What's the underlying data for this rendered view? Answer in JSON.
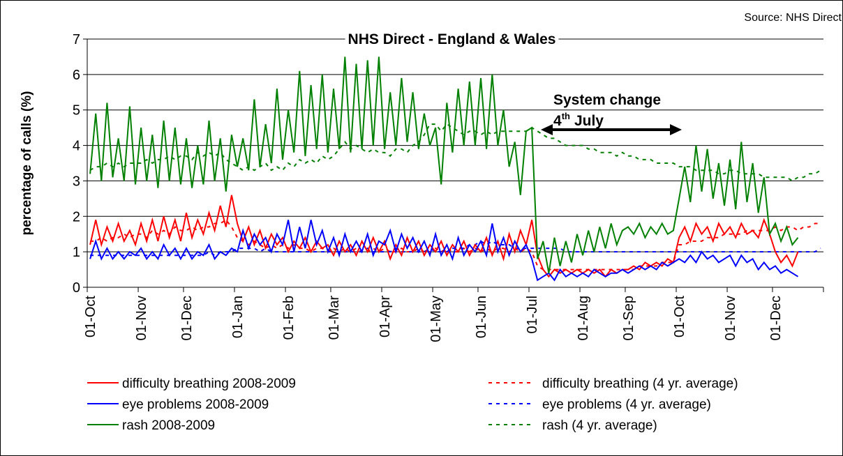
{
  "chart_data": {
    "type": "line",
    "title": "NHS Direct - England & Wales",
    "source": "Source: NHS Direct",
    "y_label": "percentage of calls (%)",
    "annotation": {
      "text": "System change",
      "day": "4",
      "day_suffix": "th",
      "month": "July"
    },
    "ylim": [
      0,
      7
    ],
    "yticks": [
      0,
      1,
      2,
      3,
      4,
      5,
      6,
      7
    ],
    "grid": true,
    "categories": [
      "01-Oct",
      null,
      null,
      null,
      null,
      null,
      null,
      null,
      null,
      "01-Nov",
      null,
      null,
      null,
      null,
      null,
      null,
      null,
      "01-Dec",
      null,
      null,
      null,
      null,
      null,
      null,
      null,
      null,
      "01-Jan",
      null,
      null,
      null,
      null,
      null,
      null,
      null,
      null,
      "01-Feb",
      null,
      null,
      null,
      null,
      null,
      null,
      null,
      "01-Mar",
      null,
      null,
      null,
      null,
      null,
      null,
      null,
      null,
      "01-Apr",
      null,
      null,
      null,
      null,
      null,
      null,
      null,
      null,
      "01-May",
      null,
      null,
      null,
      null,
      null,
      null,
      null,
      "01-Jun",
      null,
      null,
      null,
      null,
      null,
      null,
      null,
      null,
      "01-Jul",
      null,
      null,
      null,
      null,
      null,
      null,
      null,
      null,
      "01-Aug",
      null,
      null,
      null,
      null,
      null,
      null,
      null,
      "01-Sep",
      null,
      null,
      null,
      null,
      null,
      null,
      null,
      null,
      "01-Oct",
      null,
      null,
      null,
      null,
      null,
      null,
      null,
      null,
      "01-Nov",
      null,
      null,
      null,
      null,
      null,
      null,
      null,
      "01-Dec",
      null,
      null,
      null,
      null,
      null,
      null,
      null,
      null
    ],
    "series": [
      {
        "name": "difficulty breathing 2008-2009",
        "color": "#ff0000",
        "dashed": false,
        "values": [
          1.2,
          1.9,
          1.2,
          1.7,
          1.3,
          1.8,
          1.3,
          1.6,
          1.2,
          1.8,
          1.3,
          1.9,
          1.3,
          2.0,
          1.4,
          1.9,
          1.3,
          2.1,
          1.4,
          1.9,
          1.5,
          2.1,
          1.6,
          2.3,
          1.7,
          2.6,
          1.8,
          1.3,
          1.7,
          1.2,
          1.6,
          1.1,
          1.5,
          1.2,
          1.4,
          1.0,
          1.3,
          1.1,
          1.4,
          1.0,
          1.3,
          1.1,
          1.2,
          0.9,
          1.3,
          1.0,
          1.2,
          0.9,
          1.3,
          1.0,
          1.4,
          1.0,
          1.3,
          0.8,
          1.2,
          0.9,
          1.4,
          1.0,
          1.3,
          0.9,
          1.2,
          1.0,
          1.3,
          0.9,
          1.2,
          1.0,
          1.3,
          0.9,
          1.2,
          1.0,
          1.4,
          0.9,
          1.3,
          0.8,
          1.5,
          1.0,
          1.6,
          1.2,
          1.9,
          0.9,
          0.5,
          0.3,
          0.5,
          0.4,
          0.5,
          0.4,
          0.5,
          0.4,
          0.5,
          0.4,
          0.5,
          0.3,
          0.5,
          0.4,
          0.5,
          0.5,
          0.6,
          0.5,
          0.7,
          0.6,
          0.7,
          0.6,
          0.8,
          0.7,
          1.4,
          1.7,
          1.3,
          1.8,
          1.5,
          1.7,
          1.3,
          1.8,
          1.5,
          1.7,
          1.4,
          1.8,
          1.5,
          1.6,
          1.4,
          1.9,
          1.5,
          1.0,
          0.7,
          0.9,
          0.6,
          1.0,
          null,
          null,
          null,
          null
        ]
      },
      {
        "name": "eye problems 2008-2009",
        "color": "#0000ff",
        "dashed": false,
        "values": [
          0.8,
          1.3,
          0.8,
          1.1,
          0.8,
          1.0,
          0.8,
          1.0,
          0.9,
          1.1,
          0.8,
          1.0,
          0.8,
          1.2,
          0.9,
          1.1,
          0.8,
          1.1,
          0.8,
          1.0,
          0.9,
          1.2,
          0.8,
          1.0,
          0.9,
          1.1,
          1.0,
          1.6,
          1.1,
          1.5,
          1.2,
          1.4,
          1.0,
          1.5,
          1.2,
          1.9,
          1.0,
          1.7,
          1.1,
          1.9,
          1.2,
          1.6,
          1.0,
          1.4,
          0.9,
          1.5,
          1.0,
          1.3,
          1.0,
          1.5,
          0.9,
          1.3,
          1.2,
          1.6,
          1.0,
          1.5,
          1.1,
          1.4,
          1.0,
          1.3,
          0.9,
          1.5,
          0.9,
          1.2,
          0.8,
          1.4,
          0.9,
          1.2,
          1.0,
          1.3,
          0.9,
          1.8,
          1.0,
          1.4,
          0.9,
          1.3,
          1.0,
          1.2,
          0.8,
          0.2,
          0.3,
          0.4,
          0.2,
          0.5,
          0.3,
          0.4,
          0.3,
          0.4,
          0.3,
          0.5,
          0.4,
          0.3,
          0.4,
          0.4,
          0.5,
          0.4,
          0.5,
          0.6,
          0.5,
          0.6,
          0.5,
          0.7,
          0.6,
          0.7,
          0.8,
          0.7,
          0.9,
          0.7,
          1.0,
          0.8,
          0.9,
          0.7,
          0.8,
          0.9,
          0.6,
          0.9,
          0.7,
          0.8,
          0.5,
          0.7,
          0.5,
          0.6,
          0.4,
          0.5,
          0.4,
          0.3,
          null,
          null,
          null,
          null
        ]
      },
      {
        "name": "rash 2008-2009",
        "color": "#008000",
        "dashed": false,
        "values": [
          3.2,
          4.9,
          3.0,
          5.2,
          3.1,
          4.2,
          3.0,
          5.1,
          2.9,
          4.5,
          3.0,
          4.3,
          2.8,
          4.7,
          3.0,
          4.5,
          2.9,
          4.2,
          2.8,
          4.0,
          2.9,
          4.7,
          3.0,
          4.2,
          2.7,
          4.3,
          3.4,
          4.2,
          3.3,
          5.3,
          3.4,
          4.6,
          3.5,
          5.6,
          3.6,
          5.0,
          3.8,
          6.1,
          3.7,
          5.7,
          3.9,
          6.0,
          3.8,
          5.6,
          3.9,
          6.5,
          3.8,
          6.3,
          3.9,
          6.4,
          4.0,
          6.5,
          3.9,
          5.5,
          4.0,
          5.9,
          4.1,
          5.5,
          3.9,
          4.9,
          4.0,
          4.5,
          2.9,
          5.2,
          3.8,
          5.6,
          4.0,
          5.8,
          4.0,
          5.9,
          3.9,
          6.0,
          4.0,
          5.0,
          3.4,
          4.1,
          2.6,
          4.4,
          4.5,
          0.8,
          1.3,
          0.4,
          1.4,
          0.6,
          1.3,
          0.7,
          1.5,
          0.9,
          1.6,
          1.0,
          1.7,
          1.1,
          1.8,
          1.2,
          1.6,
          1.7,
          1.5,
          1.8,
          1.4,
          1.7,
          1.5,
          1.8,
          1.5,
          1.6,
          2.5,
          3.4,
          2.4,
          4.0,
          2.7,
          3.9,
          2.5,
          3.5,
          2.3,
          3.6,
          2.2,
          4.1,
          2.4,
          3.5,
          2.1,
          3.1,
          1.5,
          1.8,
          1.3,
          1.7,
          1.2,
          1.4,
          null,
          null,
          null,
          null
        ]
      },
      {
        "name": "difficulty breathing (4 yr. average)",
        "color": "#ff0000",
        "dashed": true,
        "values": [
          1.3,
          1.3,
          1.4,
          1.3,
          1.4,
          1.4,
          1.5,
          1.4,
          1.5,
          1.5,
          1.4,
          1.6,
          1.5,
          1.6,
          1.5,
          1.7,
          1.6,
          1.6,
          1.7,
          1.6,
          1.7,
          1.7,
          1.8,
          1.8,
          1.9,
          1.7,
          1.4,
          1.3,
          1.2,
          1.3,
          1.2,
          1.1,
          1.2,
          1.1,
          1.2,
          1.1,
          1.2,
          1.1,
          1.1,
          1.0,
          1.1,
          1.1,
          1.0,
          1.1,
          1.0,
          1.1,
          1.0,
          1.1,
          1.0,
          1.0,
          1.1,
          1.0,
          1.1,
          1.0,
          1.0,
          1.1,
          1.0,
          1.0,
          1.1,
          1.0,
          1.0,
          1.1,
          1.0,
          1.1,
          1.0,
          1.0,
          1.1,
          1.0,
          1.1,
          1.0,
          1.1,
          1.0,
          1.1,
          1.1,
          1.0,
          1.1,
          1.0,
          1.1,
          1.0,
          0.6,
          0.5,
          0.5,
          0.5,
          0.5,
          0.5,
          0.5,
          0.5,
          0.5,
          0.5,
          0.5,
          0.5,
          0.5,
          0.5,
          0.5,
          0.5,
          0.5,
          0.5,
          0.6,
          0.6,
          0.6,
          0.6,
          0.7,
          0.7,
          0.7,
          1.2,
          1.2,
          1.3,
          1.3,
          1.3,
          1.4,
          1.4,
          1.4,
          1.5,
          1.5,
          1.5,
          1.5,
          1.6,
          1.6,
          1.6,
          1.6,
          1.6,
          1.7,
          1.6,
          1.7,
          1.7,
          1.6,
          1.7,
          1.7,
          1.8,
          1.8
        ]
      },
      {
        "name": "eye problems (4 yr. average)",
        "color": "#0000ff",
        "dashed": true,
        "values": [
          0.9,
          0.9,
          0.9,
          0.9,
          0.9,
          0.9,
          0.9,
          0.9,
          0.9,
          0.9,
          0.9,
          0.9,
          0.9,
          0.9,
          0.9,
          0.9,
          0.9,
          0.9,
          0.9,
          0.9,
          0.9,
          1.0,
          0.9,
          1.0,
          1.0,
          1.0,
          1.1,
          1.1,
          1.1,
          1.1,
          1.0,
          1.1,
          1.0,
          1.0,
          1.0,
          1.0,
          1.0,
          1.0,
          1.0,
          1.0,
          1.0,
          1.0,
          1.0,
          1.0,
          1.0,
          1.0,
          1.0,
          1.0,
          1.0,
          1.1,
          1.0,
          1.0,
          1.0,
          1.0,
          1.1,
          1.0,
          1.0,
          1.0,
          1.0,
          1.0,
          1.1,
          1.0,
          1.0,
          1.0,
          1.1,
          1.1,
          1.1,
          1.2,
          1.2,
          1.3,
          1.2,
          1.3,
          1.2,
          1.2,
          1.2,
          1.1,
          1.1,
          1.1,
          1.1,
          1.1,
          1.1,
          1.1,
          1.1,
          1.1,
          1.0,
          1.0,
          1.0,
          1.0,
          1.0,
          1.0,
          1.0,
          1.0,
          1.0,
          1.0,
          1.0,
          1.0,
          1.0,
          1.0,
          1.0,
          1.0,
          1.0,
          1.0,
          1.0,
          1.0,
          1.0,
          1.0,
          1.0,
          1.0,
          1.0,
          1.0,
          1.0,
          1.0,
          1.0,
          1.0,
          1.0,
          1.0,
          1.0,
          1.0,
          1.0,
          1.0,
          1.0,
          1.0,
          1.0,
          1.0,
          1.0,
          1.0,
          1.0,
          1.0,
          1.0,
          1.1
        ]
      },
      {
        "name": "rash (4 yr. average)",
        "color": "#008000",
        "dashed": true,
        "values": [
          3.3,
          3.4,
          3.4,
          3.5,
          3.4,
          3.5,
          3.4,
          3.5,
          3.5,
          3.5,
          3.6,
          3.5,
          3.6,
          3.6,
          3.7,
          3.6,
          3.7,
          3.7,
          3.6,
          3.8,
          3.7,
          3.8,
          3.7,
          3.8,
          3.6,
          3.5,
          3.4,
          3.3,
          3.4,
          3.3,
          3.4,
          3.5,
          3.3,
          3.4,
          3.3,
          3.5,
          3.4,
          3.6,
          3.5,
          3.6,
          3.5,
          3.7,
          3.6,
          3.7,
          3.9,
          4.1,
          3.9,
          4.0,
          3.9,
          3.8,
          3.9,
          3.8,
          3.8,
          3.7,
          3.9,
          3.9,
          3.8,
          4.0,
          4.1,
          4.3,
          4.6,
          4.6,
          4.4,
          4.6,
          4.5,
          4.4,
          4.3,
          4.4,
          4.4,
          4.3,
          4.4,
          4.3,
          4.4,
          4.4,
          4.4,
          4.4,
          4.4,
          4.4,
          4.5,
          4.4,
          4.3,
          4.2,
          4.2,
          4.1,
          4.0,
          4.0,
          4.0,
          4.0,
          3.9,
          3.9,
          3.8,
          3.8,
          3.8,
          3.7,
          3.8,
          3.7,
          3.7,
          3.6,
          3.6,
          3.6,
          3.5,
          3.5,
          3.5,
          3.5,
          3.4,
          3.4,
          3.4,
          3.3,
          3.3,
          3.3,
          3.3,
          3.2,
          3.2,
          3.3,
          3.3,
          3.2,
          3.2,
          3.2,
          3.2,
          3.1,
          3.1,
          3.1,
          3.1,
          3.1,
          3.0,
          3.1,
          3.1,
          3.2,
          3.2,
          3.3
        ]
      }
    ]
  }
}
